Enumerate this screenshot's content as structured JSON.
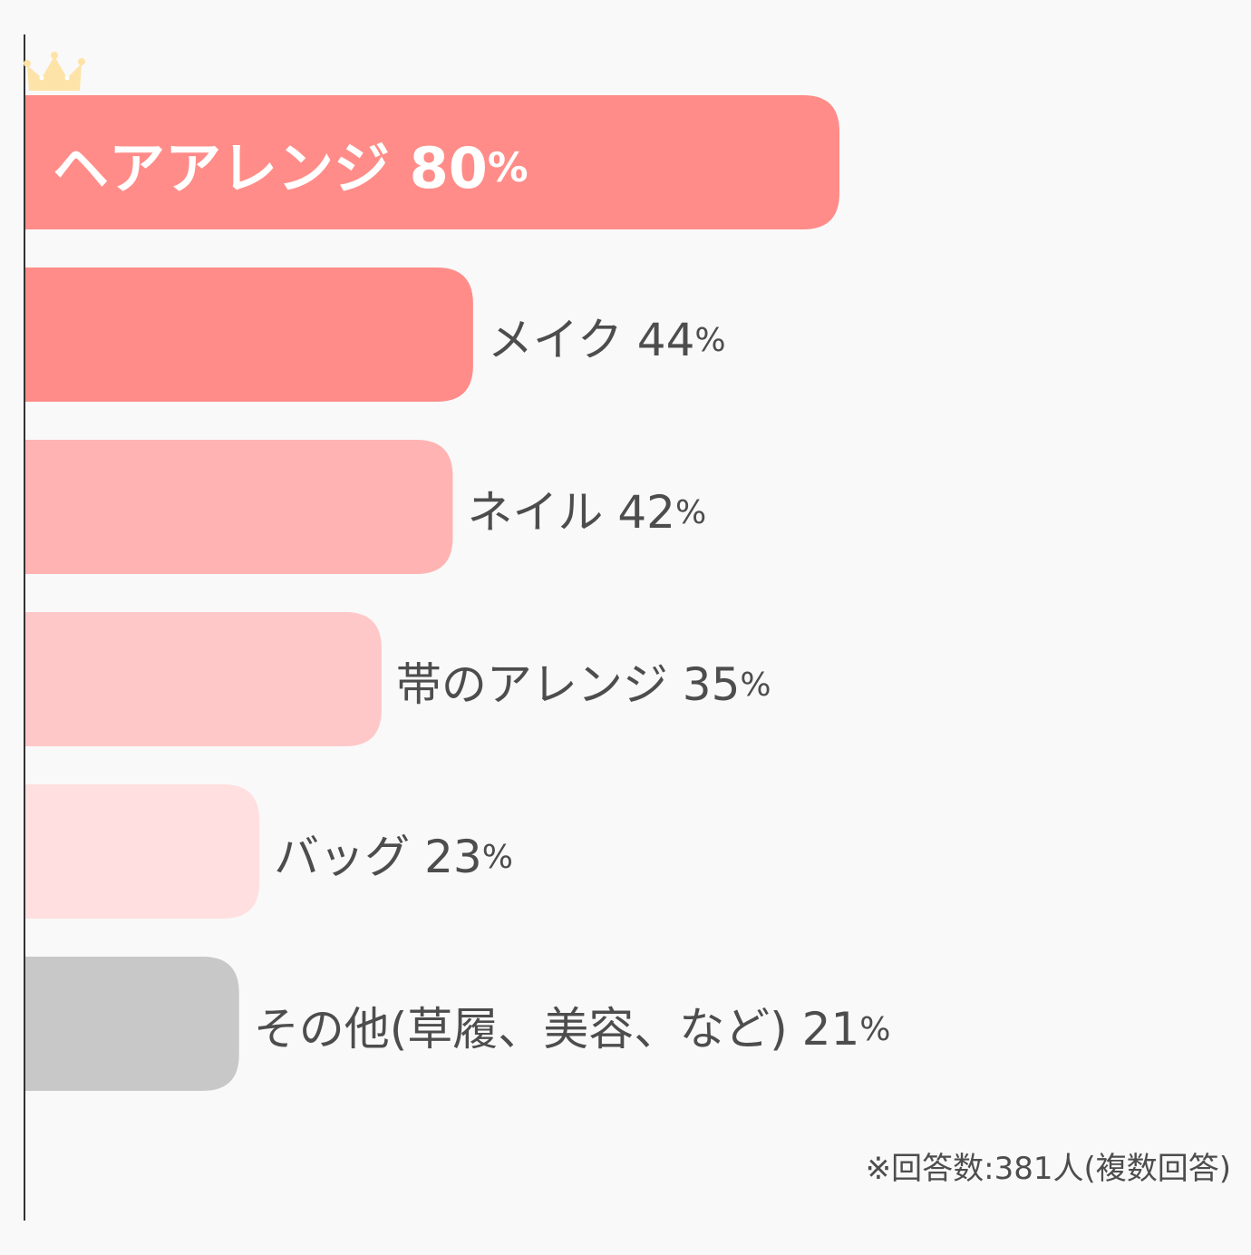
{
  "chart_data": {
    "type": "bar",
    "orientation": "horizontal",
    "percent_sign": "%",
    "categories": [
      "ヘアアレンジ",
      "メイク",
      "ネイル",
      "帯のアレンジ",
      "バッグ",
      "その他(草履、美容、など)"
    ],
    "values": [
      80,
      44,
      42,
      35,
      23,
      21
    ],
    "colors": [
      "#ff8c88",
      "#ff8c88",
      "#ffb4b3",
      "#ffc8c8",
      "#ffdfdf",
      "#c8c8c8"
    ],
    "top_marker_icon": "crown-icon",
    "axis_color": "#333333",
    "note": "※回答数:381人(複数回答)"
  }
}
